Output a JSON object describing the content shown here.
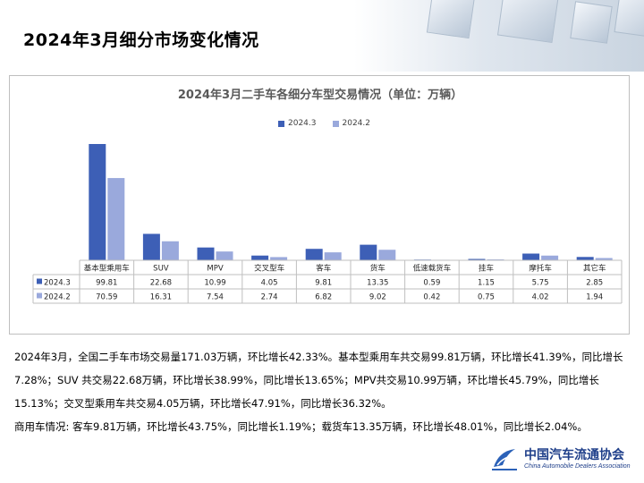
{
  "page": {
    "title": "2024年3月细分市场变化情况"
  },
  "colors": {
    "series_2024_3": "#3d5fb6",
    "series_2024_2": "#9aa9dc",
    "logo_blue": "#1f3f8a"
  },
  "chart_data": {
    "type": "bar",
    "title": "2024年3月二手车各细分车型交易情况（单位：万辆）",
    "legend_position": "top",
    "grid": false,
    "categories": [
      "基本型乘用车",
      "SUV",
      "MPV",
      "交叉型车",
      "客车",
      "货车",
      "低速载货车",
      "挂车",
      "摩托车",
      "其它车"
    ],
    "series": [
      {
        "name": "2024.3",
        "values": [
          99.81,
          22.68,
          10.99,
          4.05,
          9.81,
          13.35,
          0.59,
          1.15,
          5.75,
          2.85
        ]
      },
      {
        "name": "2024.2",
        "values": [
          70.59,
          16.31,
          7.54,
          2.74,
          6.82,
          9.02,
          0.42,
          0.75,
          4.02,
          1.94
        ]
      }
    ],
    "table": {
      "rows": [
        {
          "label": "2024.3",
          "cells": [
            "99.81",
            "22.68",
            "10.99",
            "4.05",
            "9.81",
            "13.35",
            "0.59",
            "1.15",
            "5.75",
            "2.85"
          ]
        },
        {
          "label": "2024.2",
          "cells": [
            "70.59",
            "16.31",
            "7.54",
            "2.74",
            "6.82",
            "9.02",
            "0.42",
            "0.75",
            "4.02",
            "1.94"
          ]
        }
      ]
    }
  },
  "text": {
    "para1": "2024年3月，全国二手车市场交易量171.03万辆，环比增长42.33%。基本型乘用车共交易99.81万辆，环比增长41.39%，同比增长7.28%；SUV 共交易22.68万辆，环比增长38.99%，同比增长13.65%；MPV共交易10.99万辆，环比增长45.79%，同比增长15.13%；交叉型乘用车共交易4.05万辆，环比增长47.91%，同比增长36.32%。",
    "para2": "商用车情况: 客车9.81万辆，环比增长43.75%，同比增长1.19%；载货车13.35万辆，环比增长48.01%，同比增长2.04%。"
  },
  "footer": {
    "logo_cn": "中国汽车流通协会",
    "logo_en": "China Automobile Dealers Association",
    "logo_icon": "cada-logo-icon"
  }
}
